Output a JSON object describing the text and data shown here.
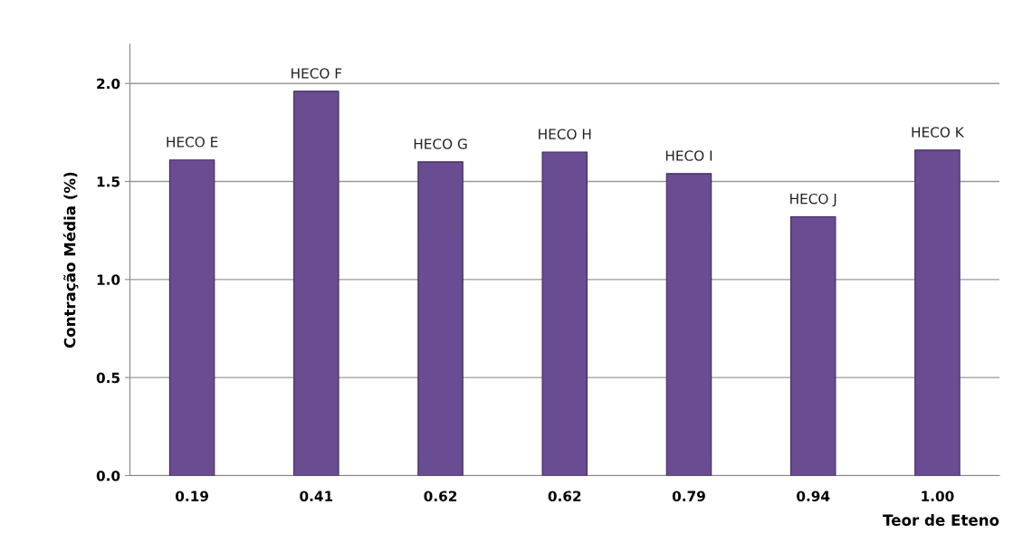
{
  "chart_data": {
    "type": "bar",
    "xlabel": "Teor de Eteno",
    "ylabel": "Contração Média (%)",
    "categories": [
      "0.19",
      "0.41",
      "0.62",
      "0.62",
      "0.79",
      "0.94",
      "1.00"
    ],
    "values": [
      1.61,
      1.96,
      1.6,
      1.65,
      1.54,
      1.32,
      1.66
    ],
    "value_labels": [
      "HECO E",
      "HECO F",
      "HECO G",
      "HECO H",
      "HECO I",
      "HECO J",
      "HECO K"
    ],
    "color": "#6a4c93",
    "ylim": [
      0,
      2.2
    ],
    "yticks": [
      {
        "value": 0,
        "label": "0.0"
      },
      0.5,
      {
        "value": 1,
        "label": "1.0"
      },
      1.5,
      {
        "value": 2,
        "label": "2.0"
      }
    ],
    "grid": "y"
  }
}
